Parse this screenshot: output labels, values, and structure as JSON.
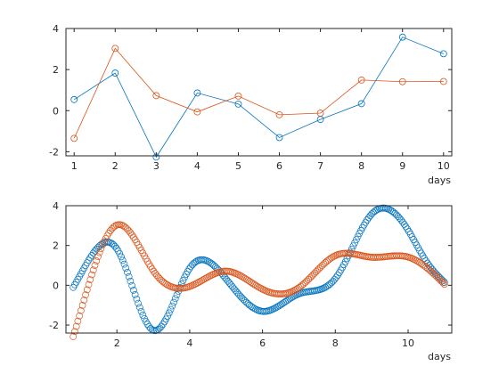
{
  "chart_data": [
    {
      "type": "line",
      "x": [
        1,
        2,
        3,
        4,
        5,
        6,
        7,
        8,
        9,
        10
      ],
      "series": [
        {
          "color": "#0072BD",
          "values": [
            0.54,
            1.83,
            -2.26,
            0.86,
            0.32,
            -1.31,
            -0.43,
            0.34,
            3.58,
            2.77
          ]
        },
        {
          "color": "#D95319",
          "values": [
            -1.35,
            3.03,
            0.73,
            -0.06,
            0.71,
            -0.2,
            -0.12,
            1.49,
            1.41,
            1.42
          ]
        }
      ],
      "xlabel": "days",
      "ylabel": "",
      "title": "",
      "xlim": [
        0.8,
        10.2
      ],
      "ylim": [
        -2.2,
        4
      ],
      "xticks": [
        1,
        2,
        3,
        4,
        5,
        6,
        7,
        8,
        9,
        10
      ],
      "yticks": [
        -2,
        0,
        2,
        4
      ],
      "marker": "circle",
      "line": true,
      "grid": false
    },
    {
      "type": "scatter",
      "x_knots": [
        1,
        2,
        3,
        4,
        5,
        6,
        7,
        8,
        9,
        10
      ],
      "x_range": [
        0.8,
        11
      ],
      "series": [
        {
          "color": "#0072BD",
          "knot_values": [
            0.54,
            1.83,
            -2.26,
            0.86,
            0.32,
            -1.31,
            -0.43,
            0.34,
            3.58,
            2.77
          ],
          "values_extended": [
            [
              10.5,
              1.2
            ],
            [
              11,
              0.15
            ]
          ]
        },
        {
          "color": "#D95319",
          "knot_values": [
            -1.35,
            3.03,
            0.73,
            -0.06,
            0.71,
            -0.2,
            -0.12,
            1.49,
            1.41,
            1.42
          ],
          "values_extended": [
            [
              10.5,
              0.9
            ],
            [
              11,
              0.05
            ]
          ]
        }
      ],
      "xlabel": "days",
      "ylabel": "",
      "title": "",
      "xlim": [
        0.6,
        11.2
      ],
      "ylim": [
        -2.4,
        4
      ],
      "xticks": [
        2,
        4,
        6,
        8,
        10
      ],
      "yticks": [
        -2,
        0,
        2,
        4
      ],
      "marker": "circle",
      "line": false,
      "grid": false
    }
  ]
}
